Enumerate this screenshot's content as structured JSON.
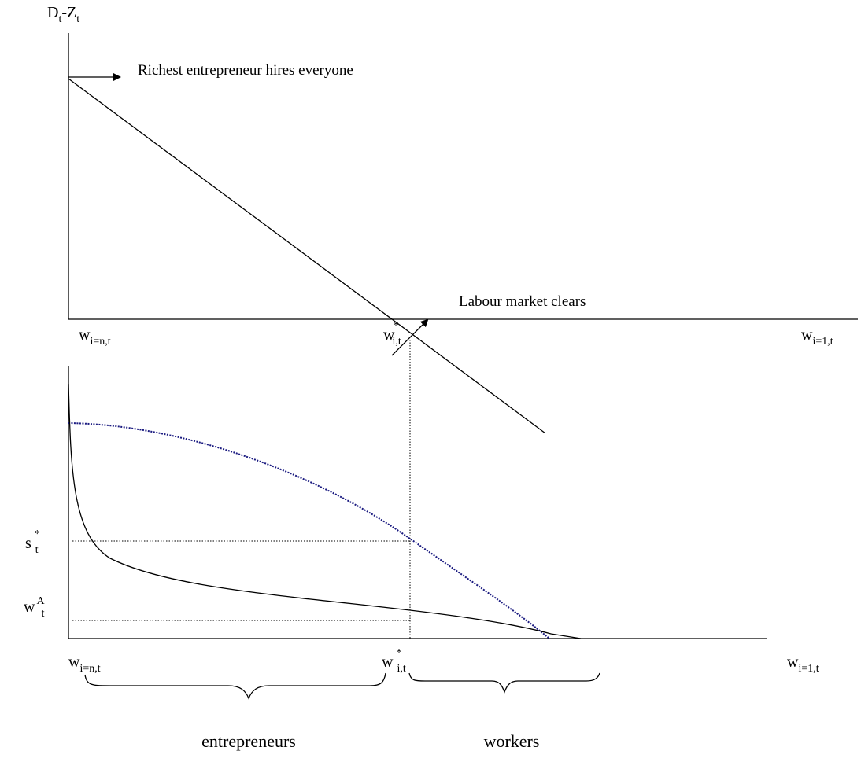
{
  "top_panel": {
    "y_label": [
      "D",
      "t",
      "-Z",
      "t"
    ],
    "annotations": [
      "Richest entrepreneur hires everyone",
      "Labour market clears"
    ],
    "x_labels": {
      "left": [
        "w",
        "i=n,t"
      ],
      "middle": [
        "w",
        "*",
        "i,t"
      ],
      "right": [
        "w",
        "i=1,t"
      ]
    }
  },
  "bottom_panel": {
    "y_labels": {
      "s": [
        "s",
        "*",
        "t"
      ],
      "wa": [
        "w",
        "A",
        "t"
      ]
    },
    "x_labels": {
      "left": [
        "w",
        "i=n,t"
      ],
      "middle": [
        "w",
        "*",
        "i,t"
      ],
      "right": [
        "w",
        "i=1,t"
      ]
    },
    "groups": [
      "entrepreneurs",
      "workers"
    ]
  }
}
